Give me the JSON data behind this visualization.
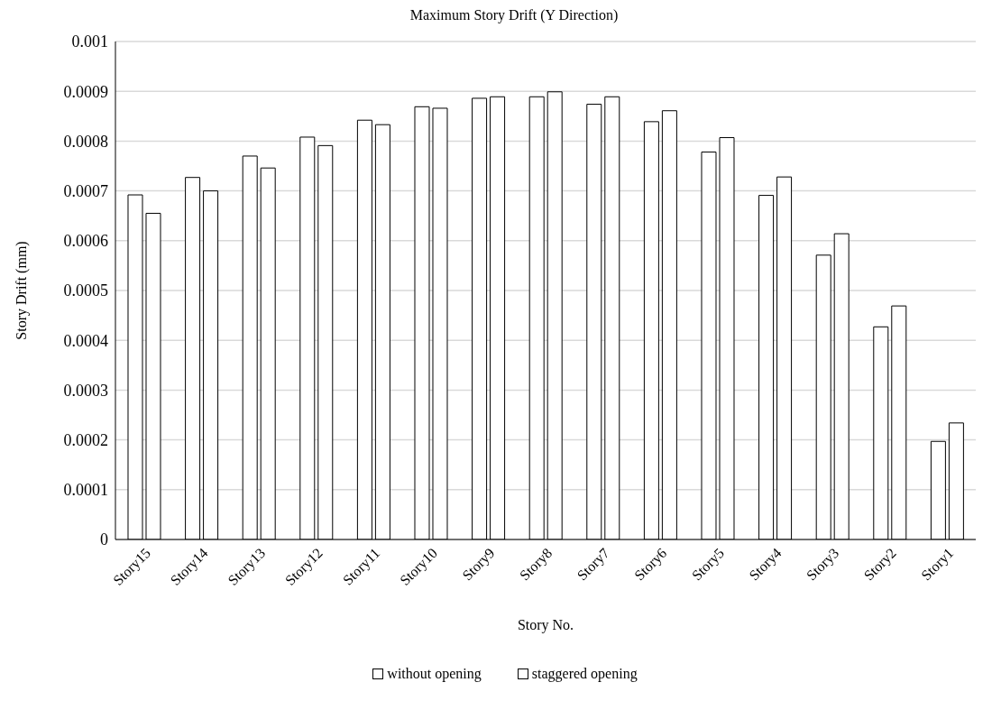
{
  "chart_data": {
    "type": "bar",
    "title": "Maximum Story Drift (Y Direction)",
    "xlabel": "Story No.",
    "ylabel": "Story Drift (mm)",
    "categories": [
      "Story15",
      "Story14",
      "Story13",
      "Story12",
      "Story11",
      "Story10",
      "Story9",
      "Story8",
      "Story7",
      "Story6",
      "Story5",
      "Story4",
      "Story3",
      "Story2",
      "Story1"
    ],
    "series": [
      {
        "name": "without opening",
        "color": "#ffffff",
        "values": [
          0.000692,
          0.000727,
          0.00077,
          0.000808,
          0.000842,
          0.000869,
          0.000886,
          0.000889,
          0.000874,
          0.000839,
          0.000778,
          0.000691,
          0.000571,
          0.000427,
          0.000197
        ]
      },
      {
        "name": "staggered opening",
        "color": "#ffffff",
        "values": [
          0.000655,
          0.0007,
          0.000746,
          0.000791,
          0.000833,
          0.000866,
          0.000889,
          0.000899,
          0.000889,
          0.000861,
          0.000807,
          0.000728,
          0.000614,
          0.000469,
          0.000234
        ]
      }
    ],
    "ylim": [
      0,
      0.001
    ],
    "yticks": [
      0,
      0.0001,
      0.0002,
      0.0003,
      0.0004,
      0.0005,
      0.0006,
      0.0007,
      0.0008,
      0.0009,
      0.001
    ],
    "grid": "y",
    "legend": "bottom"
  }
}
